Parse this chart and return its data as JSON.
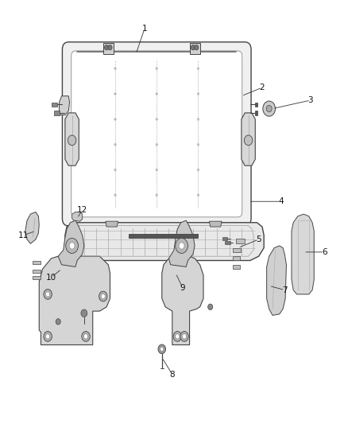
{
  "background_color": "#ffffff",
  "fig_width": 4.38,
  "fig_height": 5.33,
  "dpi": 100,
  "line_color": "#444444",
  "fill_light": "#f0f0f0",
  "fill_mid": "#e0e0e0",
  "fill_dark": "#c8c8c8",
  "lw_main": 0.8,
  "lw_thin": 0.5,
  "label_fontsize": 7.5,
  "parts_labels": [
    [
      1,
      0.415,
      0.935,
      0.39,
      0.875
    ],
    [
      2,
      0.755,
      0.795,
      0.695,
      0.775
    ],
    [
      3,
      0.895,
      0.765,
      0.785,
      0.745
    ],
    [
      4,
      0.81,
      0.525,
      0.715,
      0.525
    ],
    [
      5,
      0.745,
      0.435,
      0.685,
      0.415
    ],
    [
      6,
      0.935,
      0.405,
      0.875,
      0.405
    ],
    [
      7,
      0.82,
      0.315,
      0.775,
      0.325
    ],
    [
      8,
      0.495,
      0.115,
      0.465,
      0.155
    ],
    [
      9,
      0.525,
      0.32,
      0.505,
      0.355
    ],
    [
      10,
      0.145,
      0.345,
      0.175,
      0.365
    ],
    [
      11,
      0.065,
      0.445,
      0.1,
      0.455
    ],
    [
      12,
      0.235,
      0.505,
      0.22,
      0.485
    ]
  ]
}
